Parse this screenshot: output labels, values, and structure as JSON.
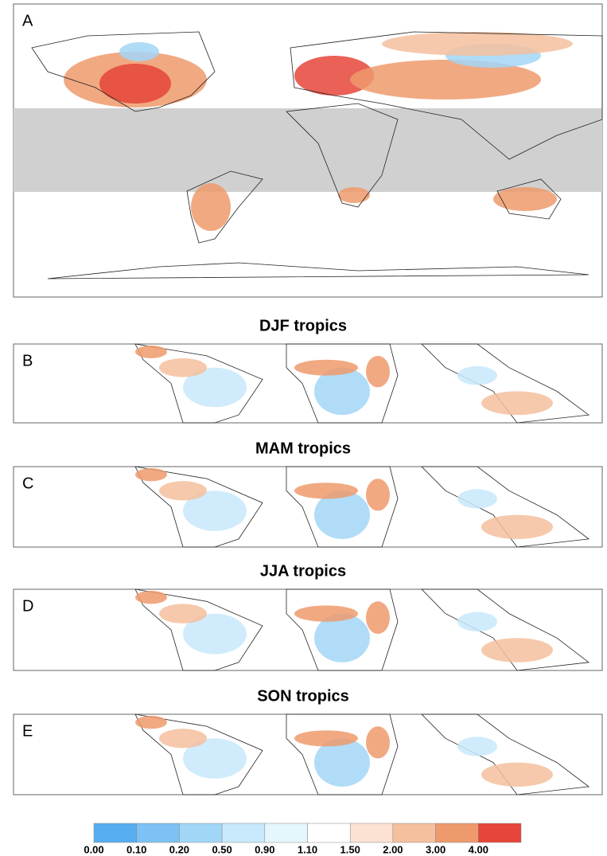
{
  "panels": [
    {
      "label": "A"
    },
    {
      "label": "B",
      "title": "DJF tropics"
    },
    {
      "label": "C",
      "title": "MAM tropics"
    },
    {
      "label": "D",
      "title": "JJA tropics"
    },
    {
      "label": "E",
      "title": "SON tropics"
    }
  ],
  "colorbar": {
    "colors": [
      "#56aef0",
      "#7cc2f4",
      "#a2d6f7",
      "#c8e9fb",
      "#e6f6fd",
      "#ffffff",
      "#fbe2d3",
      "#f5c09e",
      "#ee9a6c",
      "#e5453a"
    ],
    "labels": [
      "0.00",
      "0.10",
      "0.20",
      "0.50",
      "0.90",
      "1.10",
      "1.50",
      "2.00",
      "3.00",
      "4.00"
    ]
  }
}
